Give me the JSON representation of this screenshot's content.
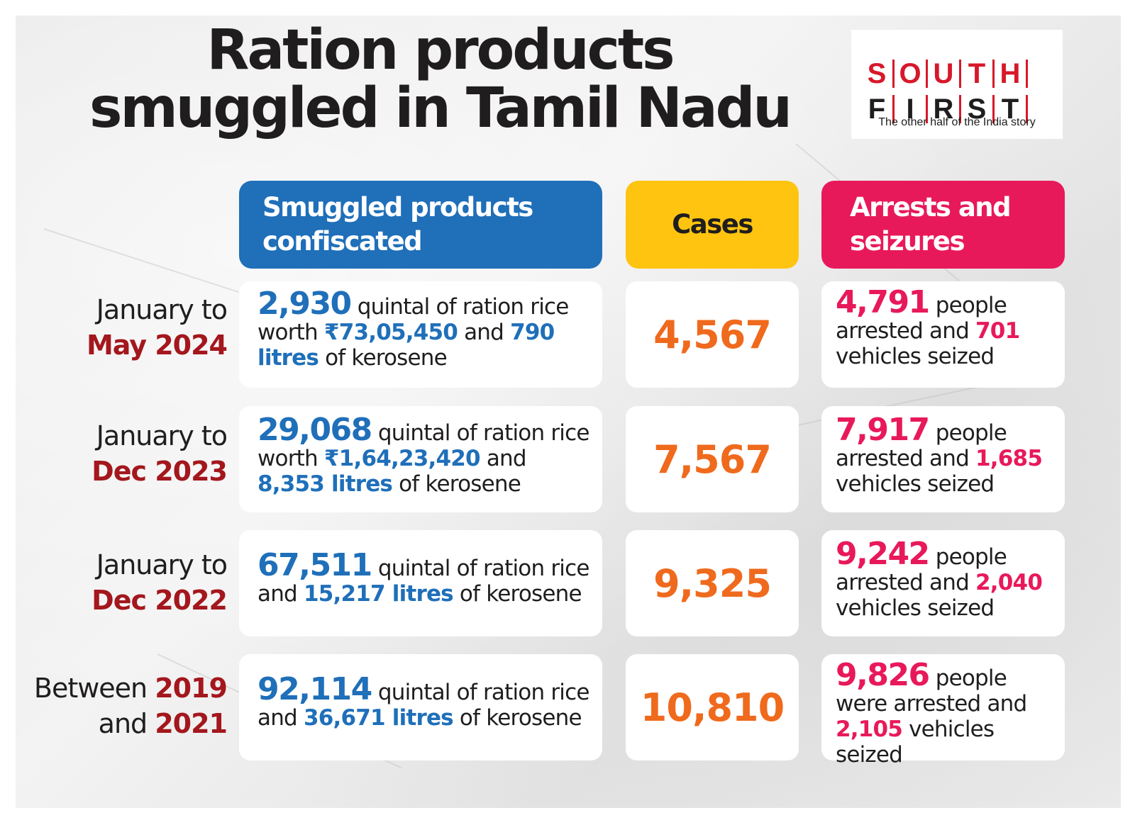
{
  "title": {
    "line1": "Ration products",
    "line2": "smuggled in Tamil Nadu"
  },
  "logo": {
    "top_letters": [
      "S",
      "O",
      "U",
      "T",
      "H"
    ],
    "bottom_letters": [
      "F",
      "I",
      "R",
      "S",
      "T"
    ],
    "tagline": "The other half of the India story",
    "colors": {
      "red": "#d7182a",
      "dark": "#1f1d1e"
    }
  },
  "headers": {
    "products": "Smuggled products confiscated",
    "cases": "Cases",
    "arrests": "Arrests and seizures"
  },
  "colors": {
    "blue": "#1f6fb9",
    "yellow": "#ffc40f",
    "pink": "#e8195a",
    "orange": "#ef6a1d",
    "dark_red": "#a3171d"
  },
  "rows": [
    {
      "period": {
        "line1": "January to",
        "line2": "May 2024"
      },
      "products": {
        "quintal": "2,930",
        "t1": " quintal of ration rice worth ",
        "worth": "₹73,05,450",
        "t2": " and ",
        "litres": "790 litres",
        "t3": " of kerosene"
      },
      "cases": "4,567",
      "arrests": {
        "people": "4,791",
        "t1": " people arrested and ",
        "vehicles": "701",
        "t2": " vehicles seized"
      }
    },
    {
      "period": {
        "line1": "January to",
        "line2": "Dec 2023"
      },
      "products": {
        "quintal": "29,068",
        "t1": " quintal of ration rice worth ",
        "worth": "₹1,64,23,420",
        "t2": " and ",
        "litres": "8,353 litres",
        "t3": " of kerosene"
      },
      "cases": "7,567",
      "arrests": {
        "people": "7,917",
        "t1": " people arrested and ",
        "vehicles": "1,685",
        "t2": " vehicles seized"
      }
    },
    {
      "period": {
        "line1": "January to",
        "line2": "Dec 2022"
      },
      "products": {
        "quintal": "67,511",
        "t1": " quintal of ration rice and ",
        "litres": "15,217 litres",
        "t3": " of kerosene"
      },
      "cases": "9,325",
      "arrests": {
        "people": "9,242",
        "t1": " people arrested and ",
        "vehicles": "2,040",
        "t2": " vehicles seized"
      }
    },
    {
      "period": {
        "pre": "Between ",
        "year1": "2019",
        "mid": "and ",
        "year2": "2021"
      },
      "products": {
        "quintal": "92,114",
        "t1": " quintal of ration rice and ",
        "litres": "36,671 litres",
        "t3": " of kerosene"
      },
      "cases": "10,810",
      "arrests": {
        "people": "9,826",
        "t1": " people were arrested and ",
        "vehicles": "2,105",
        "t2": " vehicles seized"
      }
    }
  ]
}
